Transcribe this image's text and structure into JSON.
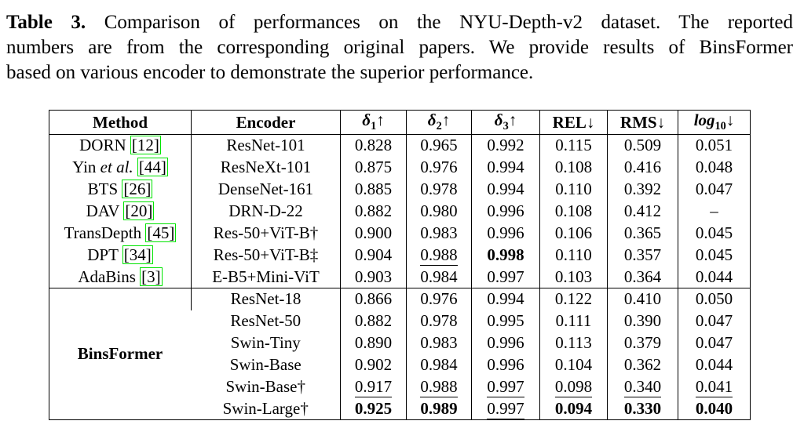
{
  "caption": {
    "label": "Table 3.",
    "line1": "Comparison of performances on the NYU-Depth-v2 dataset. The reported",
    "line2": "numbers are from the corresponding original papers. We provide results of BinsFormer",
    "line3": "based on various encoder to demonstrate the superior performance."
  },
  "colors": {
    "text": "#000000",
    "background": "#ffffff",
    "table_border": "#000000",
    "citation_box": "#00e400"
  },
  "table": {
    "header": {
      "method": "Method",
      "encoder": "Encoder",
      "metrics": [
        {
          "name": "col-delta1",
          "base": "δ",
          "sub": "1",
          "arrow": "↑",
          "italic": true
        },
        {
          "name": "col-delta2",
          "base": "δ",
          "sub": "2",
          "arrow": "↑",
          "italic": true
        },
        {
          "name": "col-delta3",
          "base": "δ",
          "sub": "3",
          "arrow": "↑",
          "italic": true
        },
        {
          "name": "col-rel",
          "base": "REL",
          "sub": "",
          "arrow": "↓",
          "italic": false
        },
        {
          "name": "col-rms",
          "base": "RMS",
          "sub": "",
          "arrow": "↓",
          "italic": false
        },
        {
          "name": "col-log10",
          "base": "log",
          "sub": "10",
          "arrow": "↓",
          "italic": true
        }
      ]
    },
    "sections": [
      {
        "rows": [
          {
            "method": "DORN",
            "cite": "12",
            "encoder": "ResNet-101",
            "cells": [
              {
                "t": "0.828"
              },
              {
                "t": "0.965"
              },
              {
                "t": "0.992"
              },
              {
                "t": "0.115"
              },
              {
                "t": "0.509"
              },
              {
                "t": "0.051"
              }
            ]
          },
          {
            "method": "Yin",
            "method_italic": "et al.",
            "cite": "44",
            "encoder": "ResNeXt-101",
            "cells": [
              {
                "t": "0.875"
              },
              {
                "t": "0.976"
              },
              {
                "t": "0.994"
              },
              {
                "t": "0.108"
              },
              {
                "t": "0.416"
              },
              {
                "t": "0.048"
              }
            ]
          },
          {
            "method": "BTS",
            "cite": "26",
            "encoder": "DenseNet-161",
            "cells": [
              {
                "t": "0.885"
              },
              {
                "t": "0.978"
              },
              {
                "t": "0.994"
              },
              {
                "t": "0.110"
              },
              {
                "t": "0.392"
              },
              {
                "t": "0.047"
              }
            ]
          },
          {
            "method": "DAV",
            "cite": "20",
            "encoder": "DRN-D-22",
            "cells": [
              {
                "t": "0.882"
              },
              {
                "t": "0.980"
              },
              {
                "t": "0.996"
              },
              {
                "t": "0.108"
              },
              {
                "t": "0.412"
              },
              {
                "t": "–"
              }
            ]
          },
          {
            "method": "TransDepth",
            "cite": "45",
            "encoder": "Res-50+ViT-B†",
            "cells": [
              {
                "t": "0.900"
              },
              {
                "t": "0.983"
              },
              {
                "t": "0.996"
              },
              {
                "t": "0.106"
              },
              {
                "t": "0.365"
              },
              {
                "t": "0.045"
              }
            ]
          },
          {
            "method": "DPT",
            "cite": "34",
            "encoder": "Res-50+ViT-B‡",
            "cells": [
              {
                "t": "0.904"
              },
              {
                "t": "0.988",
                "u": true
              },
              {
                "t": "0.998",
                "b": true
              },
              {
                "t": "0.110"
              },
              {
                "t": "0.357"
              },
              {
                "t": "0.045"
              }
            ]
          },
          {
            "method": "AdaBins",
            "cite": "3",
            "encoder": "E-B5+Mini-ViT",
            "cells": [
              {
                "t": "0.903"
              },
              {
                "t": "0.984"
              },
              {
                "t": "0.997"
              },
              {
                "t": "0.103"
              },
              {
                "t": "0.364"
              },
              {
                "t": "0.044"
              }
            ]
          }
        ]
      },
      {
        "group_label": "BinsFormer",
        "rows": [
          {
            "encoder": "ResNet-18",
            "cells": [
              {
                "t": "0.866"
              },
              {
                "t": "0.976"
              },
              {
                "t": "0.994"
              },
              {
                "t": "0.122"
              },
              {
                "t": "0.410"
              },
              {
                "t": "0.050"
              }
            ]
          },
          {
            "encoder": "ResNet-50",
            "cells": [
              {
                "t": "0.882"
              },
              {
                "t": "0.978"
              },
              {
                "t": "0.995"
              },
              {
                "t": "0.111"
              },
              {
                "t": "0.390"
              },
              {
                "t": "0.047"
              }
            ]
          },
          {
            "encoder": "Swin-Tiny",
            "cells": [
              {
                "t": "0.890"
              },
              {
                "t": "0.983"
              },
              {
                "t": "0.996"
              },
              {
                "t": "0.113"
              },
              {
                "t": "0.379"
              },
              {
                "t": "0.047"
              }
            ]
          },
          {
            "encoder": "Swin-Base",
            "cells": [
              {
                "t": "0.902"
              },
              {
                "t": "0.984"
              },
              {
                "t": "0.996"
              },
              {
                "t": "0.104"
              },
              {
                "t": "0.362"
              },
              {
                "t": "0.044"
              }
            ]
          },
          {
            "encoder": "Swin-Base†",
            "cells": [
              {
                "t": "0.917",
                "u": true
              },
              {
                "t": "0.988",
                "u": true
              },
              {
                "t": "0.997",
                "u": true
              },
              {
                "t": "0.098",
                "u": true
              },
              {
                "t": "0.340",
                "u": true
              },
              {
                "t": "0.041",
                "u": true
              }
            ]
          },
          {
            "encoder": "Swin-Large†",
            "cells": [
              {
                "t": "0.925",
                "b": true
              },
              {
                "t": "0.989",
                "b": true
              },
              {
                "t": "0.997",
                "u": true
              },
              {
                "t": "0.094",
                "b": true
              },
              {
                "t": "0.330",
                "b": true
              },
              {
                "t": "0.040",
                "b": true
              }
            ]
          }
        ]
      }
    ]
  }
}
